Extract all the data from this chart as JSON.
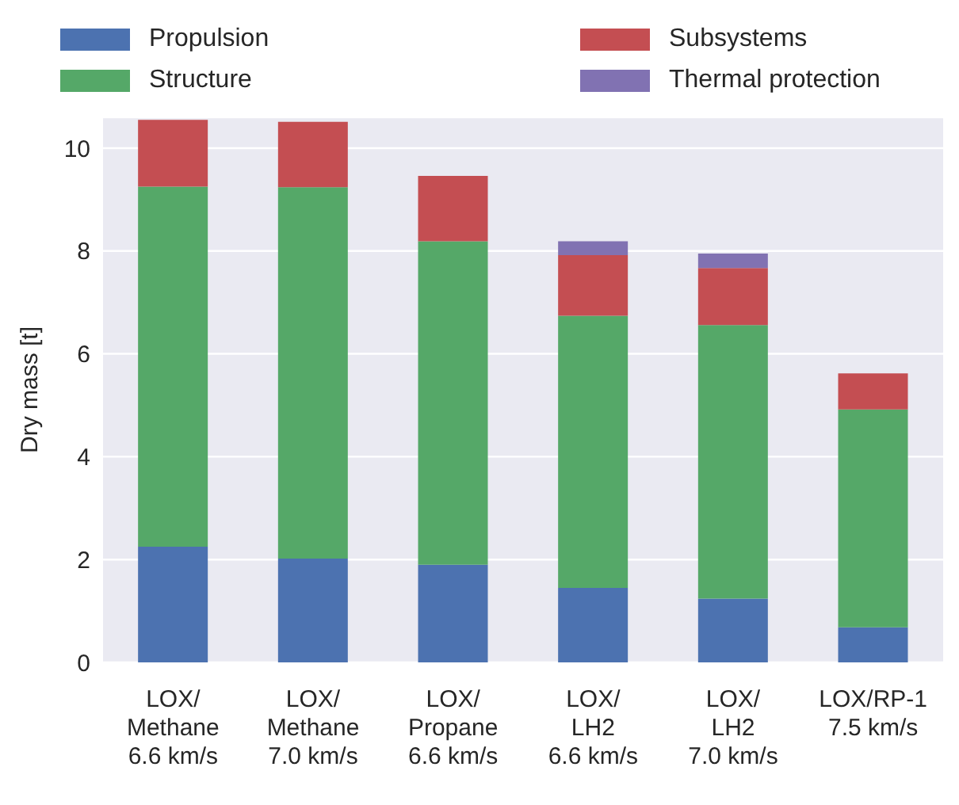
{
  "chart_data": {
    "type": "bar",
    "stacked": true,
    "ylabel": "Dry mass [t]",
    "categories": [
      "LOX/\nMethane\n6.6 km/s",
      "LOX/\nMethane\n7.0 km/s",
      "LOX/\nPropane\n6.6 km/s",
      "LOX/\nLH2\n6.6 km/s",
      "LOX/\nLH2\n7.0 km/s",
      "LOX/RP-1\n7.5 km/s"
    ],
    "series": [
      {
        "name": "Propulsion",
        "color": "#4c72b0",
        "values": [
          2.25,
          2.02,
          1.9,
          1.45,
          1.24,
          0.68
        ]
      },
      {
        "name": "Structure",
        "color": "#55a868",
        "values": [
          7.0,
          7.22,
          6.29,
          5.29,
          5.32,
          4.24
        ]
      },
      {
        "name": "Subsystems",
        "color": "#c44e52",
        "values": [
          1.3,
          1.27,
          1.27,
          1.18,
          1.11,
          0.7
        ]
      },
      {
        "name": "Thermal protection",
        "color": "#8172b2",
        "values": [
          0,
          0,
          0,
          0.27,
          0.28,
          0
        ]
      }
    ],
    "ylim": [
      0,
      10.6
    ],
    "yticks": [
      0,
      2,
      4,
      6,
      8,
      10
    ],
    "grid": "y",
    "legend": "top"
  }
}
